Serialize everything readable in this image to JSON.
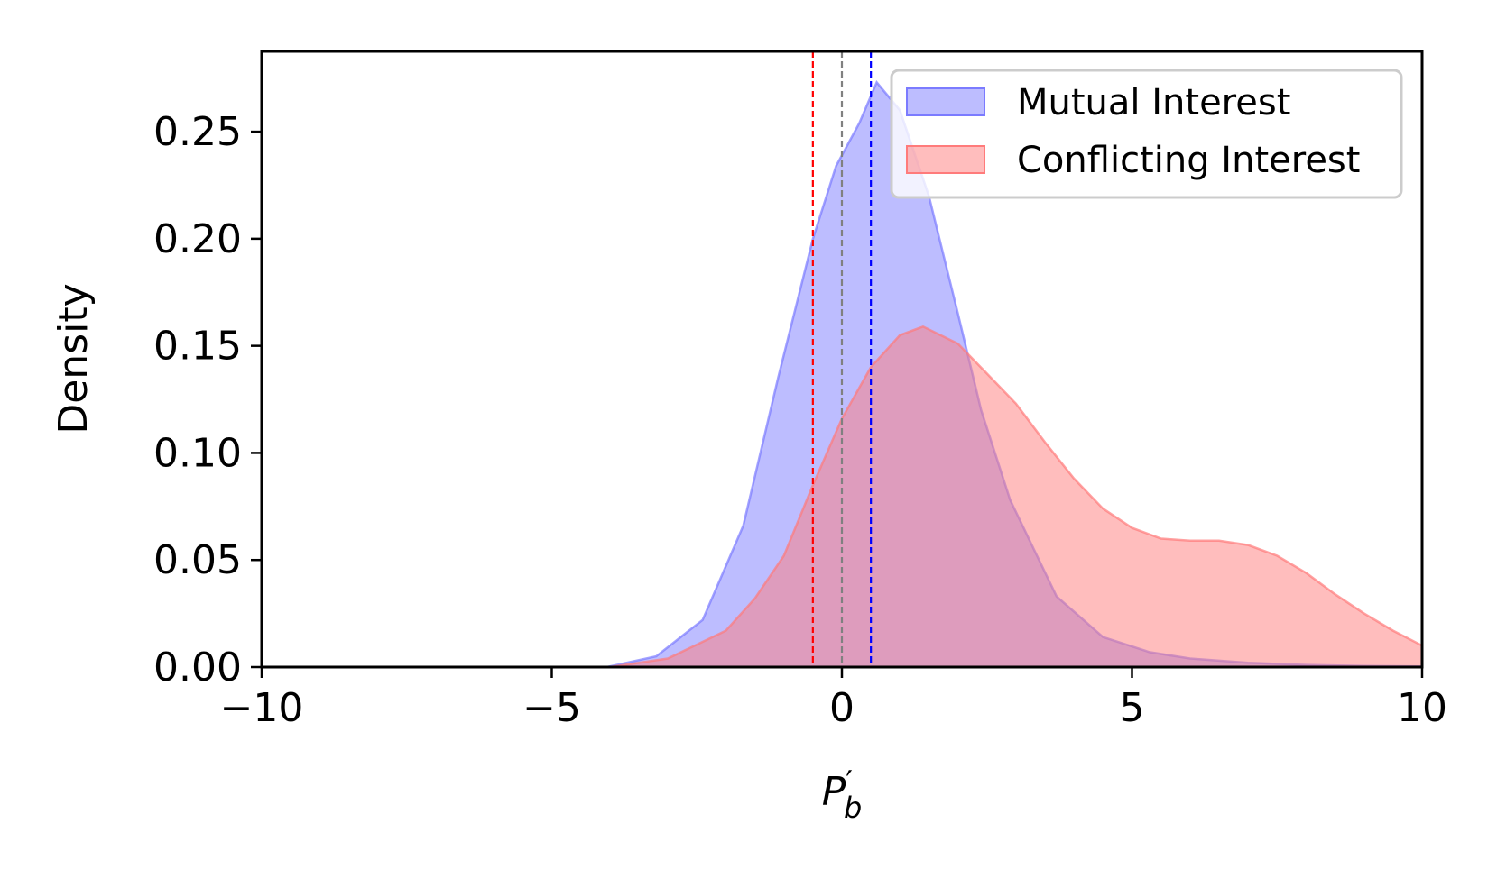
{
  "chart_data": {
    "type": "area",
    "title": "",
    "xlabel": "P′_b",
    "xlabel_main": "P",
    "xlabel_sub": "b",
    "xlabel_prime": "′",
    "ylabel": "Density",
    "xlim": [
      -10,
      10
    ],
    "ylim": [
      0,
      0.2875
    ],
    "x_ticks": [
      -10,
      -5,
      0,
      5,
      10
    ],
    "x_tick_labels": [
      "−10",
      "−5",
      "0",
      "5",
      "10"
    ],
    "y_ticks": [
      0.0,
      0.05,
      0.1,
      0.15,
      0.2,
      0.25
    ],
    "y_tick_labels": [
      "0.00",
      "0.05",
      "0.10",
      "0.15",
      "0.20",
      "0.25"
    ],
    "grid": false,
    "legend_position": "top-right",
    "series": [
      {
        "name": "Mutual Interest",
        "color": "#7b7bff",
        "fill_opacity": 0.5,
        "x": [
          -4.05,
          -3.2,
          -2.4,
          -1.7,
          -1.1,
          -0.5,
          -0.1,
          0.3,
          0.6,
          1.0,
          1.5,
          2.0,
          2.4,
          2.9,
          3.7,
          4.5,
          5.3,
          6.0,
          7.0,
          8.0,
          9.0,
          10.0
        ],
        "values": [
          0.0,
          0.005,
          0.022,
          0.066,
          0.135,
          0.2,
          0.234,
          0.254,
          0.273,
          0.26,
          0.22,
          0.165,
          0.12,
          0.078,
          0.033,
          0.014,
          0.007,
          0.004,
          0.002,
          0.001,
          0.0005,
          0.0003
        ]
      },
      {
        "name": "Conflicting Interest",
        "color": "#ff7b7b",
        "fill_opacity": 0.5,
        "x": [
          -4.0,
          -3.0,
          -2.0,
          -1.5,
          -1.0,
          -0.5,
          0.0,
          0.5,
          1.0,
          1.4,
          2.0,
          2.5,
          3.0,
          3.5,
          4.0,
          4.5,
          5.0,
          5.5,
          6.0,
          6.5,
          7.0,
          7.5,
          8.0,
          8.5,
          9.0,
          9.5,
          10.0
        ],
        "values": [
          0.0,
          0.004,
          0.017,
          0.032,
          0.052,
          0.085,
          0.116,
          0.14,
          0.155,
          0.159,
          0.151,
          0.137,
          0.123,
          0.105,
          0.088,
          0.074,
          0.065,
          0.06,
          0.059,
          0.059,
          0.057,
          0.052,
          0.044,
          0.034,
          0.025,
          0.017,
          0.01
        ]
      }
    ],
    "vlines": [
      {
        "x": -0.5,
        "color": "#ff0000",
        "style": "dashed"
      },
      {
        "x": 0.0,
        "color": "#808080",
        "style": "dashed"
      },
      {
        "x": 0.5,
        "color": "#0000ff",
        "style": "dashed"
      }
    ]
  }
}
